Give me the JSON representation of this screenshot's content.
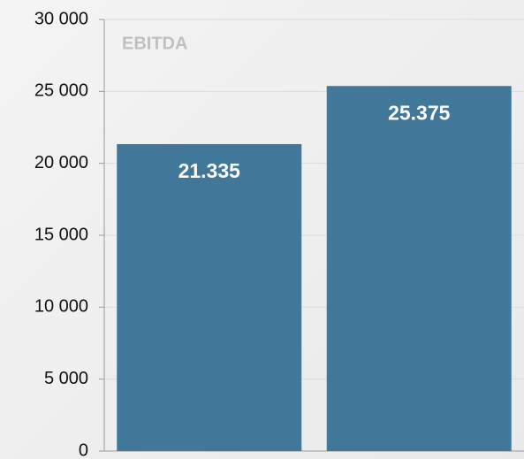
{
  "chart_data": {
    "type": "bar",
    "title": "EBITDA",
    "categories": [
      null,
      null
    ],
    "values": [
      21335,
      25375
    ],
    "value_labels": [
      "21.335",
      "25.375"
    ],
    "color": "#41789a",
    "ylim": [
      0,
      30000
    ],
    "yticks": [
      0,
      {
        "value": 5000,
        "label": "5 000"
      },
      {
        "value": 10000,
        "label": "10 000"
      },
      {
        "value": 15000,
        "label": "15 000"
      },
      {
        "value": 20000,
        "label": "20 000"
      },
      {
        "value": 25000,
        "label": "25 000"
      },
      {
        "value": 30000,
        "label": "30 000"
      }
    ],
    "grid": true
  }
}
